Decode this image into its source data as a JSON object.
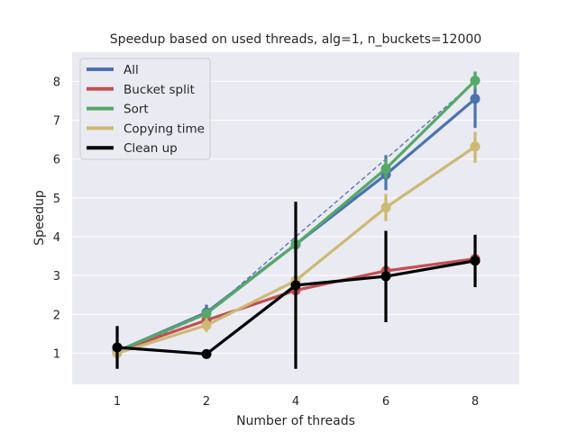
{
  "chart_data": {
    "type": "line",
    "title": "Speedup based on used threads, alg=1, n_buckets=12000",
    "xlabel": "Number of threads",
    "ylabel": "Speedup",
    "categories": [
      "1",
      "2",
      "4",
      "6",
      "8"
    ],
    "ylim": [
      0.2,
      8.75
    ],
    "yticks": [
      1,
      2,
      3,
      4,
      5,
      6,
      7,
      8
    ],
    "grid": true,
    "legend_position": "top-left",
    "background_color": "#eaeaf2",
    "ideal_line": {
      "style": "dashed",
      "color": "#4c72b0",
      "values": [
        1,
        2,
        4,
        6,
        8
      ]
    },
    "series": [
      {
        "name": "All",
        "color": "#4c72b0",
        "values": [
          1.05,
          2.05,
          3.8,
          5.6,
          7.55
        ],
        "err_low": [
          0.95,
          1.9,
          3.7,
          5.2,
          6.8
        ],
        "err_high": [
          1.15,
          2.25,
          3.9,
          6.1,
          8.25
        ]
      },
      {
        "name": "Bucket split",
        "color": "#c44e52",
        "values": [
          1.05,
          1.85,
          2.62,
          3.12,
          3.43
        ],
        "err_low": [
          1.0,
          1.8,
          2.55,
          3.05,
          3.35
        ],
        "err_high": [
          1.1,
          1.95,
          2.7,
          3.2,
          3.5
        ]
      },
      {
        "name": "Sort",
        "color": "#55a868",
        "values": [
          1.05,
          2.02,
          3.8,
          5.75,
          8.02
        ],
        "err_low": [
          1.0,
          1.95,
          3.7,
          5.5,
          7.8
        ],
        "err_high": [
          1.1,
          2.1,
          3.9,
          6.0,
          8.25
        ]
      },
      {
        "name": "Copying time",
        "color": "#ccb974",
        "values": [
          1.0,
          1.72,
          2.87,
          4.75,
          6.32
        ],
        "err_low": [
          0.9,
          1.55,
          2.7,
          4.4,
          5.9
        ],
        "err_high": [
          1.1,
          1.9,
          3.0,
          5.1,
          6.7
        ]
      },
      {
        "name": "Clean up",
        "color": "#000000",
        "values": [
          1.15,
          0.98,
          2.75,
          2.98,
          3.38
        ],
        "err_low": [
          0.6,
          0.9,
          0.6,
          1.8,
          2.7
        ],
        "err_high": [
          1.7,
          1.05,
          4.9,
          4.15,
          4.05
        ]
      }
    ]
  }
}
